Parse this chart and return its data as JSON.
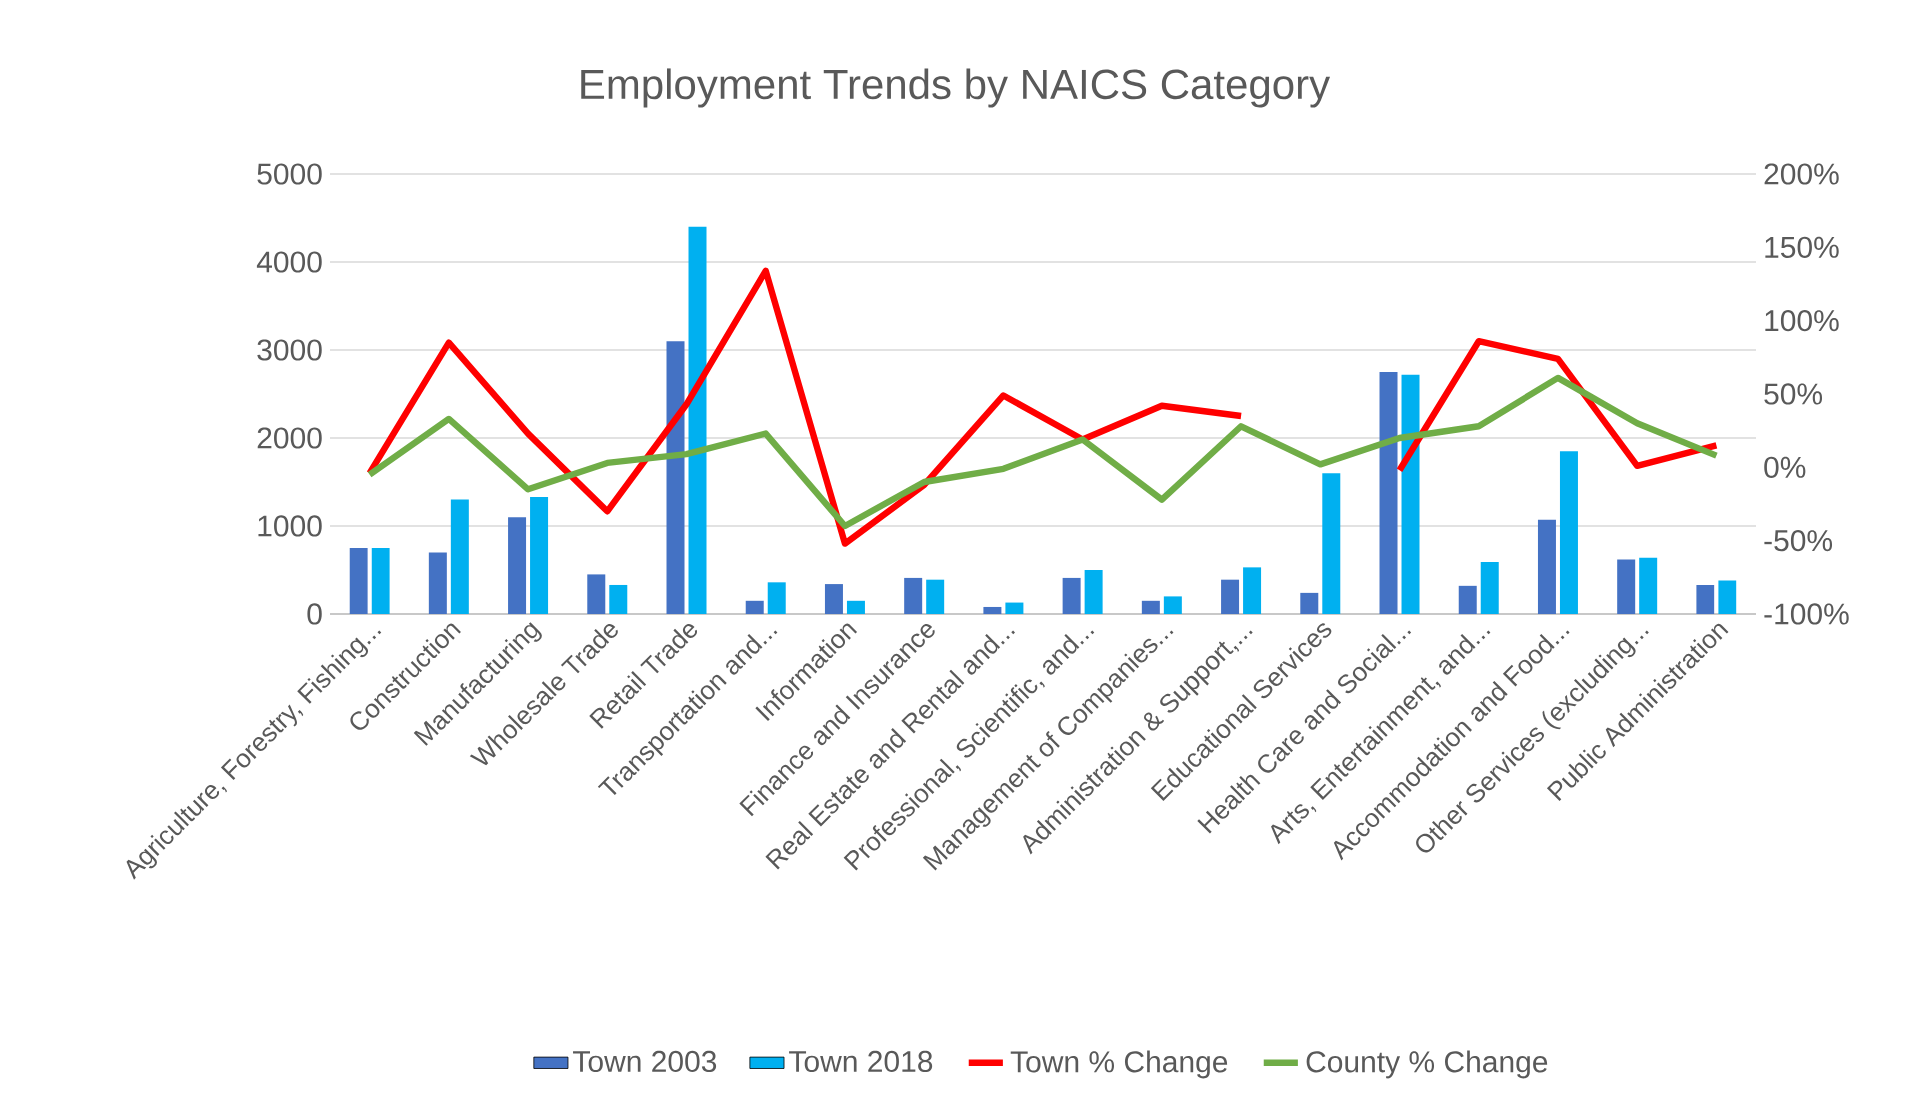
{
  "chart_data": {
    "type": "bar",
    "title": "Employment Trends by NAICS Category",
    "categories": [
      "Agriculture, Forestry, Fishing...",
      "Construction",
      "Manufacturing",
      "Wholesale Trade",
      "Retail Trade",
      "Transportation and...",
      "Information",
      "Finance and Insurance",
      "Real Estate and Rental and...",
      "Professional, Scientific, and...",
      "Management of Companies...",
      "Administration & Support,...",
      "Educational Services",
      "Health Care and Social...",
      "Arts, Entertainment, and...",
      "Accommodation and Food...",
      "Other Services (excluding...",
      "Public Administration"
    ],
    "series": [
      {
        "name": "Town 2003",
        "color": "#4472c4",
        "values": [
          750,
          700,
          1100,
          450,
          3100,
          150,
          340,
          410,
          80,
          410,
          150,
          390,
          240,
          2750,
          320,
          1070,
          620,
          330
        ]
      },
      {
        "name": "Town 2018",
        "color": "#00b0f0",
        "values": [
          750,
          1300,
          1330,
          330,
          4400,
          360,
          150,
          390,
          130,
          500,
          200,
          530,
          1600,
          2720,
          590,
          1850,
          640,
          380
        ]
      },
      {
        "name": "Town % Change",
        "type": "line",
        "axis": "y2",
        "color": "#ff0000",
        "values": [
          -4,
          85,
          23,
          -30,
          43,
          134,
          -52,
          -12,
          49,
          19,
          42,
          35,
          null,
          -2,
          86,
          74,
          1,
          15
        ]
      },
      {
        "name": "County % Change",
        "type": "line",
        "axis": "y2",
        "color": "#70ad47",
        "values": [
          -5,
          33,
          -15,
          3,
          9,
          23,
          -40,
          -10,
          -1,
          19,
          -22,
          28,
          2,
          20,
          28,
          61,
          30,
          8
        ]
      }
    ],
    "ylim": [
      0,
      5000
    ],
    "yticks": [
      0,
      1000,
      2000,
      3000,
      4000,
      5000
    ],
    "y2lim": [
      -100,
      200
    ],
    "y2ticks": [
      {
        "value": -100,
        "label": "-100%"
      },
      {
        "value": -50,
        "label": "-50%"
      },
      {
        "value": 0,
        "label": "0%"
      },
      {
        "value": 50,
        "label": "50%"
      },
      {
        "value": 100,
        "label": "100%"
      },
      {
        "value": 150,
        "label": "150%"
      },
      {
        "value": 200,
        "label": "200%"
      }
    ],
    "grid": "y",
    "legend": "bottom",
    "marker": "none"
  }
}
